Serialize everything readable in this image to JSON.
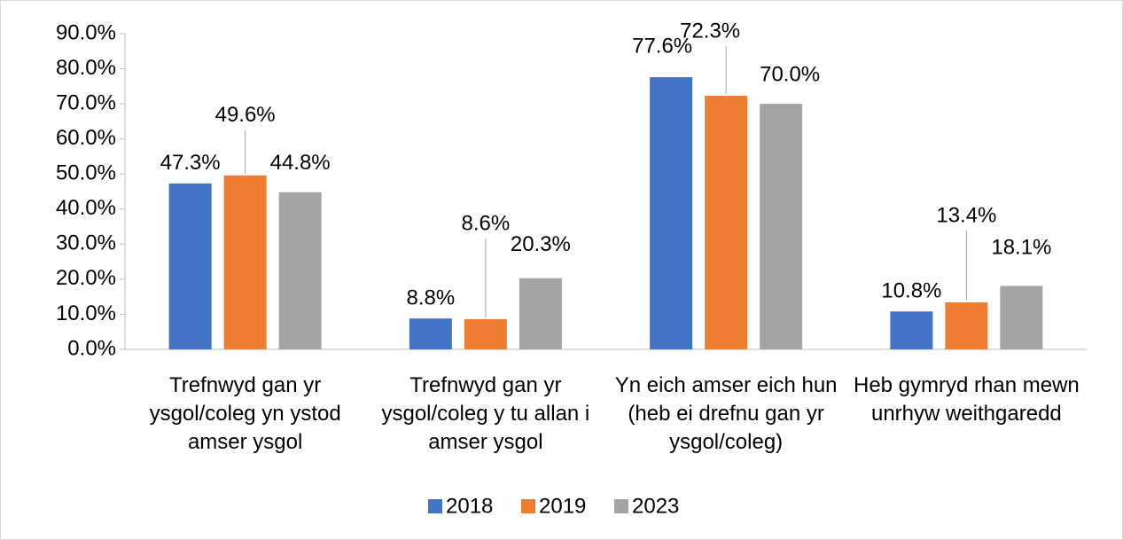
{
  "chart_data": {
    "type": "bar",
    "categories": [
      "Trefnwyd gan yr ysgol/coleg yn ystod amser ysgol",
      "Trefnwyd gan yr ysgol/coleg y tu allan i amser ysgol",
      "Yn eich amser eich hun (heb ei drefnu gan yr ysgol/coleg)",
      "Heb gymryd rhan mewn unrhyw weithgaredd"
    ],
    "series": [
      {
        "name": "2018",
        "color": "#4472c4",
        "values": [
          47.3,
          8.8,
          77.6,
          10.8
        ],
        "value_labels": [
          "47.3%",
          "8.8%",
          "77.6%",
          "10.8%"
        ]
      },
      {
        "name": "2019",
        "color": "#ed7d31",
        "values": [
          49.6,
          8.6,
          72.3,
          13.4
        ],
        "value_labels": [
          "49.6%",
          "8.6%",
          "72.3%",
          "13.4%"
        ]
      },
      {
        "name": "2023",
        "color": "#a5a5a5",
        "values": [
          44.8,
          20.3,
          70.0,
          18.1
        ],
        "value_labels": [
          "44.8%",
          "20.3%",
          "70.0%",
          "18.1%"
        ]
      }
    ],
    "ylim": [
      0,
      90
    ],
    "yticks": [
      {
        "value": 0,
        "label": "0.0%"
      },
      {
        "value": 10,
        "label": "10.0%"
      },
      {
        "value": 20,
        "label": "20.0%"
      },
      {
        "value": 30,
        "label": "30.0%"
      },
      {
        "value": 40,
        "label": "40.0%"
      },
      {
        "value": 50,
        "label": "50.0%"
      },
      {
        "value": 60,
        "label": "60.0%"
      },
      {
        "value": 70,
        "label": "70.0%"
      },
      {
        "value": 80,
        "label": "80.0%"
      },
      {
        "value": 90,
        "label": "90.0%"
      }
    ],
    "legend": "bottom"
  }
}
